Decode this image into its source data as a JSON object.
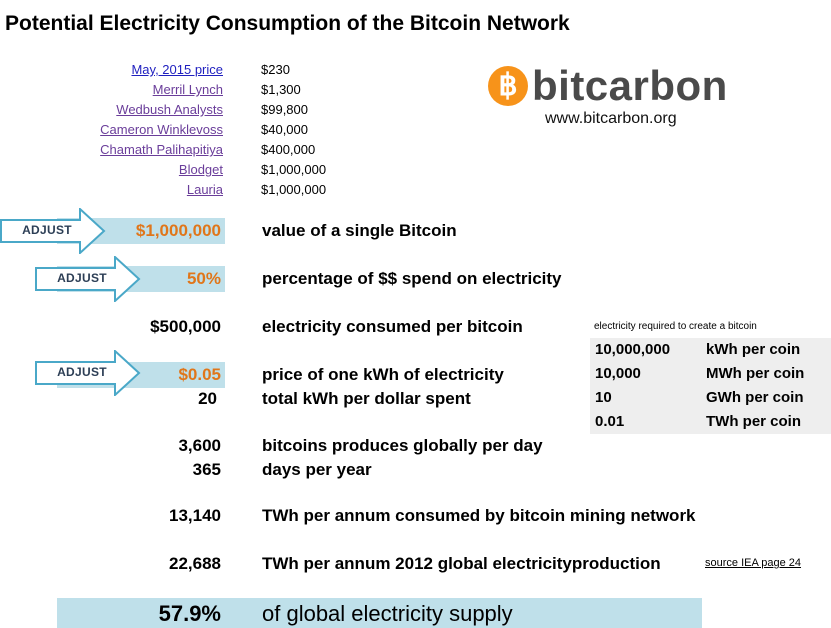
{
  "title": "Potential Electricity Consumption of the Bitcoin Network",
  "predictions": [
    {
      "name": "May, 2015 price",
      "value": "$230"
    },
    {
      "name": "Merril Lynch",
      "value": "$1,300"
    },
    {
      "name": "Wedbush Analysts",
      "value": "$99,800"
    },
    {
      "name": "Cameron Winklevoss",
      "value": "$40,000"
    },
    {
      "name": "Chamath Palihapitiya",
      "value": "$400,000"
    },
    {
      "name": "Blodget",
      "value": "$1,000,000"
    },
    {
      "name": "Lauria",
      "value": "$1,000,000"
    }
  ],
  "logo": {
    "symbol": "฿",
    "word": "bitcarbon",
    "url": "www.bitcarbon.org",
    "coin_color": "#f7931a"
  },
  "adjust_label": "ADJUST",
  "rows": {
    "coin_value": {
      "value": "$1,000,000",
      "label": "value of a single Bitcoin"
    },
    "pct_electricity": {
      "value": "50%",
      "label": "percentage of $$ spend on electricity"
    },
    "consumed_per_coin": {
      "value": "$500,000",
      "label": "electricity consumed per bitcoin"
    },
    "kwh_price": {
      "value": "$0.05",
      "label": "price of one kWh of electricity"
    },
    "kwh_per_dollar": {
      "value": "20",
      "label": "total kWh per dollar spent"
    },
    "coins_per_day": {
      "value": "3,600",
      "label": "bitcoins produces globally per day"
    },
    "days_per_year": {
      "value": "365",
      "label": "days per year"
    },
    "twh_network": {
      "value": "13,140",
      "label": "TWh per annum consumed by bitcoin mining network"
    },
    "twh_global": {
      "value": "22,688",
      "label": "TWh per annum 2012 global electricityproduction"
    }
  },
  "source_link": "source IEA page 24",
  "side": {
    "caption": "electricity required to create a bitcoin",
    "rows": [
      {
        "num": "10,000,000",
        "unit": "kWh per coin"
      },
      {
        "num": "10,000",
        "unit": "MWh per coin"
      },
      {
        "num": "10",
        "unit": "GWh per coin"
      },
      {
        "num": "0.01",
        "unit": "TWh per coin"
      }
    ]
  },
  "result": {
    "value": "57.9%",
    "label": "of global electricity supply"
  },
  "colors": {
    "highlight_band": "#bfe0ea",
    "input_value": "#e0761a",
    "link": "#6a3d9a"
  }
}
